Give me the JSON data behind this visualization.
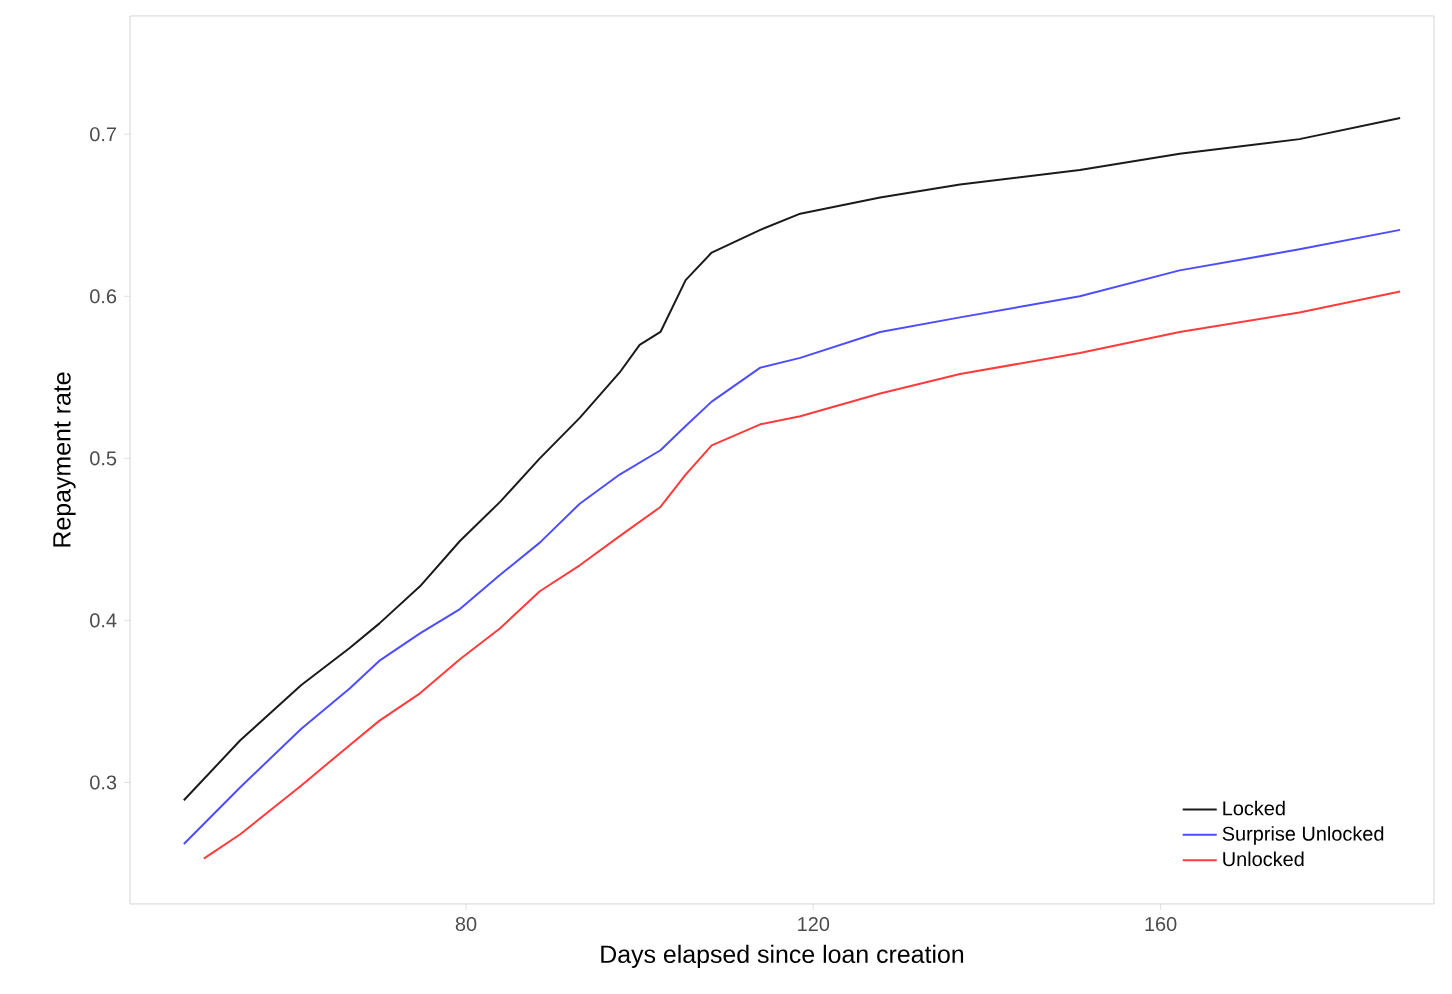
{
  "chart_data": {
    "type": "line",
    "xlabel": "Days elapsed since loan creation",
    "ylabel": "Repayment rate",
    "xlim": [
      41.3,
      191.5
    ],
    "ylim": [
      0.225,
      0.773
    ],
    "xticks": [
      80,
      120,
      160
    ],
    "yticks": [
      0.3,
      0.4,
      0.5,
      0.6,
      0.7
    ],
    "grid": false,
    "legend": "bottom right",
    "marker": "none",
    "line_style": "solid",
    "series": [
      {
        "name": "Locked",
        "color": "#1a1a1a",
        "x": [
          47.5,
          54,
          61,
          66.6,
          70,
          74.7,
          79.3,
          83.9,
          88.5,
          93.1,
          97.7,
          100,
          102.4,
          105.3,
          108.3,
          113.9,
          118.5,
          127.7,
          136.9,
          150.7,
          162.2,
          176,
          187.6
        ],
        "values": [
          0.289,
          0.326,
          0.36,
          0.383,
          0.398,
          0.421,
          0.449,
          0.473,
          0.5,
          0.525,
          0.553,
          0.57,
          0.578,
          0.61,
          0.627,
          0.641,
          0.651,
          0.661,
          0.669,
          0.678,
          0.688,
          0.697,
          0.71
        ]
      },
      {
        "name": "Surprise Unlocked",
        "color": "#4d4dff",
        "x": [
          47.5,
          54,
          61,
          66.6,
          70,
          74.7,
          79.3,
          83.9,
          88.5,
          93.1,
          97.7,
          102.4,
          105.3,
          108.3,
          113.9,
          118.5,
          127.7,
          136.9,
          150.7,
          162.2,
          176,
          187.6
        ],
        "values": [
          0.262,
          0.297,
          0.333,
          0.358,
          0.375,
          0.392,
          0.407,
          0.428,
          0.448,
          0.472,
          0.49,
          0.505,
          0.52,
          0.535,
          0.556,
          0.562,
          0.578,
          0.587,
          0.6,
          0.616,
          0.629,
          0.641
        ]
      },
      {
        "name": "Unlocked",
        "color": "#ff3b3b",
        "x": [
          49.8,
          54,
          61,
          66.6,
          70,
          74.7,
          79.3,
          83.9,
          88.5,
          93.1,
          97.7,
          102.4,
          105.3,
          108.3,
          113.9,
          118.5,
          127.7,
          136.9,
          150.7,
          162.2,
          176,
          187.6
        ],
        "values": [
          0.253,
          0.268,
          0.298,
          0.323,
          0.338,
          0.355,
          0.376,
          0.395,
          0.418,
          0.434,
          0.452,
          0.47,
          0.49,
          0.508,
          0.521,
          0.526,
          0.54,
          0.552,
          0.565,
          0.578,
          0.59,
          0.603
        ]
      }
    ]
  }
}
